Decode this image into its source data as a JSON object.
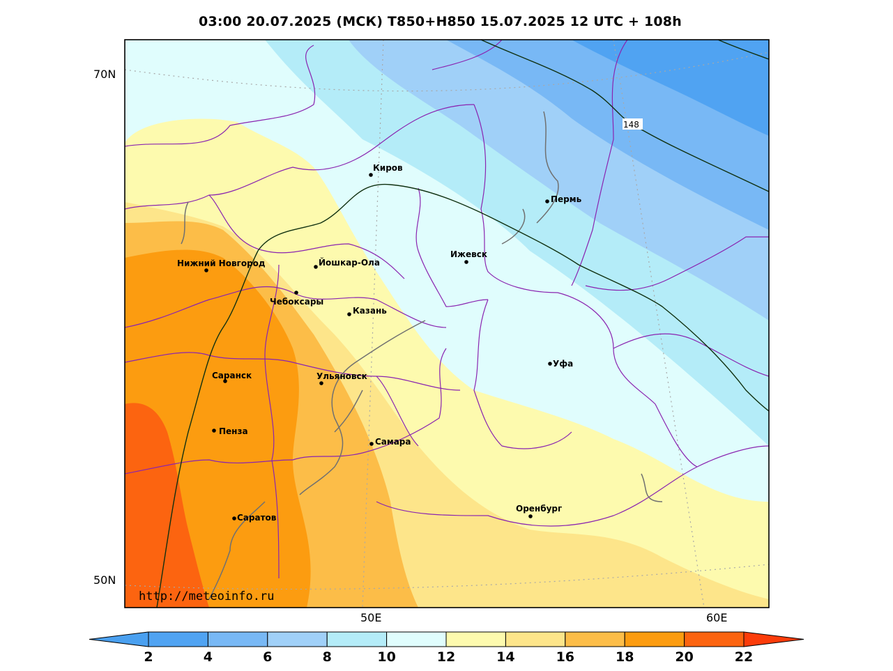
{
  "title": "03:00 20.07.2025 (МСК) T850+H850 15.07.2025 12 UTC + 108h",
  "source": "http://meteoinfo.ru",
  "lat_labels": [
    "70N",
    "50N"
  ],
  "lon_labels": [
    "50E",
    "60E"
  ],
  "isohypse_label": "148",
  "cities": [
    {
      "name": "Киров"
    },
    {
      "name": "Пермь"
    },
    {
      "name": "Нижний Новгород"
    },
    {
      "name": "Йошкар-Ола"
    },
    {
      "name": "Ижевск"
    },
    {
      "name": "Чебоксары"
    },
    {
      "name": "Казань"
    },
    {
      "name": "Уфа"
    },
    {
      "name": "Саранск"
    },
    {
      "name": "Ульяновск"
    },
    {
      "name": "Пенза"
    },
    {
      "name": "Самара"
    },
    {
      "name": "Оренбург"
    },
    {
      "name": "Саратов"
    }
  ],
  "colorbar": {
    "ticks": [
      "2",
      "4",
      "6",
      "8",
      "10",
      "12",
      "14",
      "16",
      "18",
      "20",
      "22"
    ],
    "colors": [
      "#4aa0f0",
      "#50a3f2",
      "#78b8f5",
      "#a0d0f8",
      "#b4ecf8",
      "#e0fdfd",
      "#fdfaae",
      "#fde58a",
      "#fcbd48",
      "#fc9c10",
      "#fc6410",
      "#fc3c0a"
    ]
  }
}
